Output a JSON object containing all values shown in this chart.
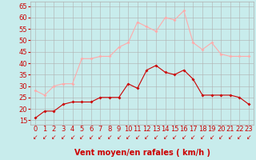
{
  "x": [
    0,
    1,
    2,
    3,
    4,
    5,
    6,
    7,
    8,
    9,
    10,
    11,
    12,
    13,
    14,
    15,
    16,
    17,
    18,
    19,
    20,
    21,
    22,
    23
  ],
  "wind_avg": [
    16,
    19,
    19,
    22,
    23,
    23,
    23,
    25,
    25,
    25,
    31,
    29,
    37,
    39,
    36,
    35,
    37,
    33,
    26,
    26,
    26,
    26,
    25,
    22
  ],
  "wind_gust": [
    28,
    26,
    30,
    31,
    31,
    42,
    42,
    43,
    43,
    47,
    49,
    58,
    56,
    54,
    60,
    59,
    63,
    49,
    46,
    49,
    44,
    43,
    43,
    43
  ],
  "bg_color": "#c8ecec",
  "grid_color": "#b0b0b0",
  "line_avg_color": "#cc0000",
  "line_gust_color": "#ffaaaa",
  "marker": "D",
  "marker_size": 2.0,
  "xlabel": "Vent moyen/en rafales ( km/h )",
  "xlabel_color": "#cc0000",
  "xlabel_fontsize": 7,
  "yticks": [
    15,
    20,
    25,
    30,
    35,
    40,
    45,
    50,
    55,
    60,
    65
  ],
  "ylim": [
    13,
    67
  ],
  "xlim": [
    -0.5,
    23.5
  ],
  "tick_fontsize": 6,
  "tick_color": "#cc0000",
  "arrow_color": "#cc0000",
  "bottom_line_color": "#cc0000"
}
